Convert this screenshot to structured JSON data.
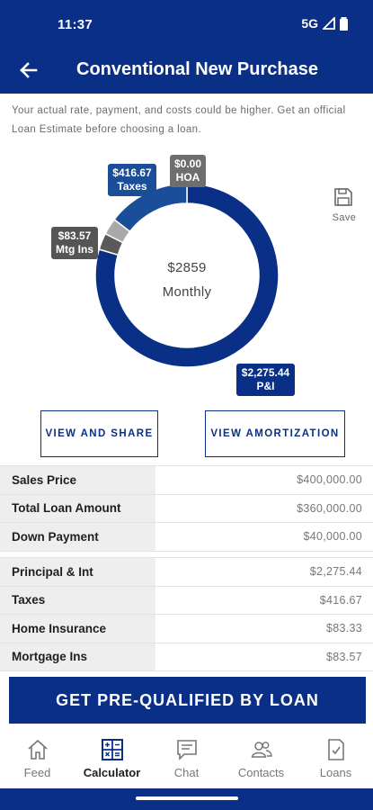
{
  "status": {
    "time": "11:37",
    "network": "5G"
  },
  "header": {
    "title": "Conventional New Purchase"
  },
  "disclaimer": "Your actual rate, payment, and costs could be higher. Get an official Loan Estimate before choosing a loan.",
  "chart_data": {
    "type": "pie",
    "donut": true,
    "center_amount": "$2859",
    "center_label": "Monthly",
    "slices": [
      {
        "label": "P&I",
        "amount": "$2,275.44",
        "value": 2275.44,
        "color": "#0a2f86"
      },
      {
        "label": "Mtg Ins",
        "amount": "$83.57",
        "value": 83.57,
        "color": "#5a5a5a"
      },
      {
        "label": "Home Insurance",
        "value": 83.33,
        "color": "#a9a9a9"
      },
      {
        "label": "Taxes",
        "amount": "$416.67",
        "value": 416.67,
        "color": "#1a4e99"
      },
      {
        "label": "HOA",
        "amount": "$0.00",
        "value": 0,
        "color": "#6e6e6e"
      }
    ]
  },
  "save": {
    "label": "Save"
  },
  "buttons": {
    "share": "VIEW AND SHARE",
    "amortization": "VIEW AMORTIZATION"
  },
  "loan_table": [
    {
      "label": "Sales Price",
      "value": "$400,000.00"
    },
    {
      "label": "Total Loan Amount",
      "value": "$360,000.00"
    },
    {
      "label": "Down Payment",
      "value": "$40,000.00"
    }
  ],
  "payment_table": [
    {
      "label": "Principal & Int",
      "value": "$2,275.44"
    },
    {
      "label": "Taxes",
      "value": "$416.67"
    },
    {
      "label": "Home Insurance",
      "value": "$83.33"
    },
    {
      "label": "Mortgage Ins",
      "value": "$83.57"
    }
  ],
  "cta": "GET PRE-QUALIFIED BY LOAN",
  "nav": [
    {
      "label": "Feed",
      "icon": "home-icon"
    },
    {
      "label": "Calculator",
      "icon": "calculator-icon",
      "active": true
    },
    {
      "label": "Chat",
      "icon": "chat-icon"
    },
    {
      "label": "Contacts",
      "icon": "contacts-icon"
    },
    {
      "label": "Loans",
      "icon": "loans-icon"
    }
  ]
}
